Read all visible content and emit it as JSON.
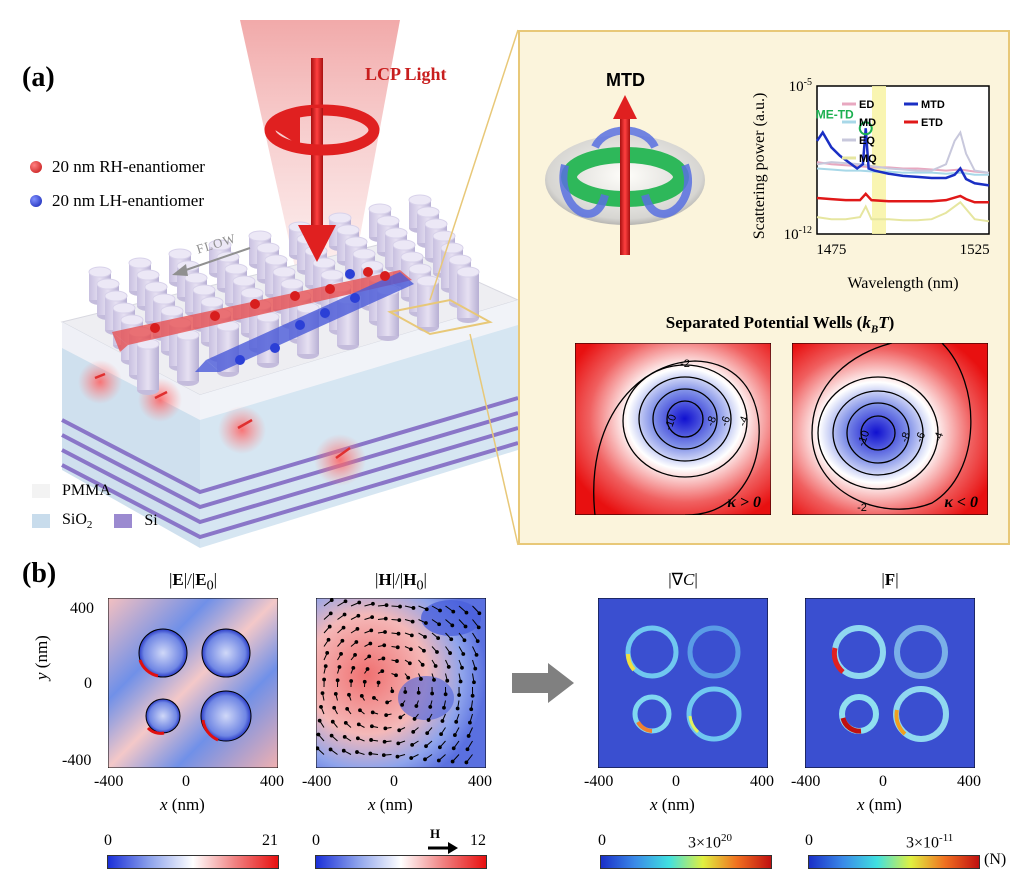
{
  "panel_a": {
    "label": "(a)",
    "light_label": "LCP Light",
    "legend": [
      {
        "text": "20 nm RH-enantiomer",
        "color": "#d81e1e"
      },
      {
        "text": "20 nm LH-enantiomer",
        "color": "#2b3fd6"
      }
    ],
    "flow_label": "FLOW",
    "materials": [
      {
        "text": "PMMA",
        "color": "#f3f3f3"
      },
      {
        "text": "SiO",
        "sub": "2",
        "color": "#c8dcec"
      },
      {
        "text": "Si",
        "color": "#9b8ad0"
      }
    ],
    "mtd_label": "MTD",
    "wells_title": "Separated Potential Wells (",
    "wells_title_sym": "k",
    "wells_title_sub": "B",
    "wells_title_T": "T",
    "wells_title_end": ")",
    "wells": [
      {
        "kappa": "κ > 0",
        "contours": [
          "-2",
          "-4",
          "-6",
          "-8",
          "-10"
        ]
      },
      {
        "kappa": "κ < 0",
        "contours": [
          "-2",
          "-4",
          "-6",
          "-8",
          "-10"
        ]
      }
    ],
    "colors": {
      "accent_red": "#c81e1e",
      "inset_bg": "#fbf4dc",
      "inset_border": "#e8c878"
    }
  },
  "chart_data": {
    "type": "line",
    "title": "",
    "xlabel": "Wavelength (nm)",
    "ylabel": "Scattering power (a.u.)",
    "x_ticks": [
      "1475",
      "1525"
    ],
    "xlim": [
      1470,
      1530
    ],
    "y_ticks": [
      "10-5",
      "10-12"
    ],
    "ylim_exponent": [
      -12,
      -5
    ],
    "annotation": "ME-TD",
    "annotation_x": 1487,
    "series": [
      {
        "name": "ED",
        "color": "#e8a8c0",
        "x": [
          1470,
          1475,
          1480,
          1485,
          1490,
          1495,
          1500,
          1505,
          1510,
          1515,
          1520,
          1525,
          1530
        ],
        "log10": [
          -8.6,
          -8.7,
          -8.75,
          -8.8,
          -8.85,
          -8.85,
          -8.9,
          -8.9,
          -8.95,
          -9.0,
          -8.95,
          -9.05,
          -9.1
        ]
      },
      {
        "name": "MD",
        "color": "#a8d8e8",
        "x": [
          1470,
          1475,
          1480,
          1485,
          1490,
          1495,
          1500,
          1505,
          1510,
          1515,
          1520,
          1525,
          1530
        ],
        "log10": [
          -8.9,
          -8.95,
          -9.0,
          -9.0,
          -9.05,
          -9.05,
          -9.1,
          -9.1,
          -9.1,
          -9.15,
          -9.1,
          -9.2,
          -9.2
        ]
      },
      {
        "name": "EQ",
        "color": "#c8c8dc",
        "x": [
          1470,
          1475,
          1480,
          1485,
          1490,
          1495,
          1500,
          1505,
          1510,
          1515,
          1518,
          1520,
          1522,
          1525,
          1530
        ],
        "log10": [
          -8.7,
          -8.6,
          -8.65,
          -8.7,
          -8.8,
          -8.9,
          -8.95,
          -9.0,
          -9.0,
          -8.7,
          -7.6,
          -7.2,
          -8.2,
          -9.0,
          -9.1
        ]
      },
      {
        "name": "MQ",
        "color": "#e6e6a0",
        "x": [
          1470,
          1475,
          1480,
          1485,
          1487,
          1489,
          1495,
          1500,
          1505,
          1510,
          1515,
          1520,
          1525,
          1530
        ],
        "log10": [
          -11.2,
          -11.3,
          -11.3,
          -11.2,
          -10.7,
          -11.3,
          -11.3,
          -11.35,
          -11.35,
          -11.3,
          -11.0,
          -10.5,
          -11.3,
          -11.4
        ]
      },
      {
        "name": "MTD",
        "color": "#1a2fc4",
        "x": [
          1470,
          1472,
          1475,
          1478,
          1481,
          1484,
          1486,
          1487,
          1488,
          1490,
          1495,
          1500,
          1505,
          1510,
          1515,
          1518,
          1520,
          1522,
          1525,
          1530
        ],
        "log10": [
          -7.6,
          -7.2,
          -7.9,
          -8.3,
          -8.6,
          -8.9,
          -8.7,
          -7.0,
          -8.9,
          -9.0,
          -9.15,
          -9.25,
          -9.3,
          -9.35,
          -9.35,
          -9.2,
          -8.9,
          -9.4,
          -9.6,
          -9.7
        ]
      },
      {
        "name": "ETD",
        "color": "#e01818",
        "x": [
          1470,
          1475,
          1480,
          1485,
          1487,
          1489,
          1495,
          1500,
          1505,
          1510,
          1515,
          1520,
          1522,
          1525,
          1530
        ],
        "log10": [
          -10.3,
          -10.35,
          -10.4,
          -10.4,
          -10.1,
          -10.4,
          -10.45,
          -10.45,
          -10.45,
          -10.45,
          -10.4,
          -10.2,
          -10.35,
          -10.5,
          -10.5
        ]
      }
    ]
  },
  "panel_b": {
    "label": "(b)",
    "plots": [
      {
        "title_html": "|<b>E</b>|/|<b>E</b><sub>0</sub>|",
        "cbar_min": "0",
        "cbar_max": "21",
        "cbar_type": "bwr"
      },
      {
        "title_html": "|<b>H</b>|/|<b>H</b><sub>0</sub>|",
        "cbar_min": "0",
        "cbar_max": "12",
        "cbar_type": "bwr",
        "arrow_label": "H"
      },
      {
        "title_html": "|&nabla;<i>C</i>|",
        "cbar_min": "0",
        "cbar_max": "3×10",
        "cbar_max_exp": "20",
        "cbar_type": "jet"
      },
      {
        "title_html": "|<b>F</b>|",
        "cbar_min": "0",
        "cbar_max": "3×10",
        "cbar_max_exp": "-11",
        "cbar_type": "jet",
        "unit": "(N)"
      }
    ],
    "x_ticks": [
      "-400",
      "0",
      "400"
    ],
    "y_ticks": [
      "400",
      "0",
      "-400"
    ],
    "xlabel_var": "x",
    "xlabel_unit": " (nm)",
    "ylabel_var": "y",
    "ylabel_unit": " (nm)"
  }
}
